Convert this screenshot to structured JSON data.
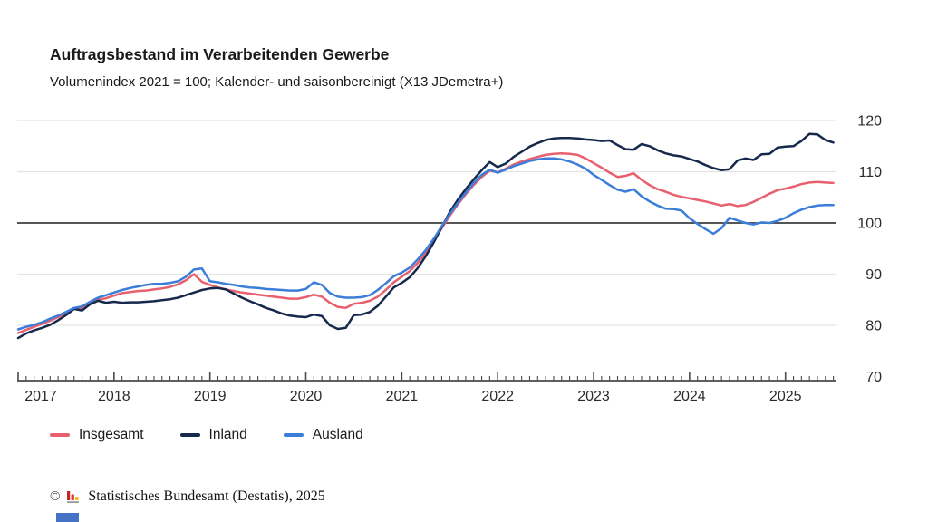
{
  "header": {
    "title": "Auftragsbestand im Verarbeitenden Gewerbe",
    "subtitle": "Volumenindex 2021 = 100; Kalender- und saisonbereinigt (X13 JDemetra+)"
  },
  "chart_data": {
    "type": "line",
    "title": "Auftragsbestand im Verarbeitenden Gewerbe",
    "subtitle": "Volumenindex 2021 = 100; Kalender- und saisonbereinigt (X13 JDemetra+)",
    "frequency": "monthly",
    "x_start": "2017-01",
    "x_end": "2025-07",
    "x_tick_years": [
      2017,
      2018,
      2019,
      2020,
      2021,
      2022,
      2023,
      2024,
      2025
    ],
    "y_ticks": [
      70,
      80,
      90,
      100,
      110,
      120
    ],
    "ylim": [
      70,
      120
    ],
    "reference_line": 100,
    "grid": "horizontal",
    "legend_position": "bottom",
    "colors": {
      "grid": "#e4e4e4",
      "reference": "#3d3d3d",
      "axis": "#4a4a4a",
      "tick_text": "#2b2b2b"
    },
    "series": [
      {
        "name": "Insgesamt",
        "color": "#e8606e",
        "values": [
          78.5,
          79.1,
          79.7,
          80.3,
          80.9,
          81.6,
          82.4,
          83.2,
          83.4,
          84.3,
          85.0,
          85.3,
          85.8,
          86.3,
          86.5,
          86.7,
          86.8,
          87.0,
          87.2,
          87.5,
          88.0,
          88.8,
          90.0,
          88.5,
          87.9,
          87.4,
          87.0,
          86.7,
          86.4,
          86.2,
          86.0,
          85.8,
          85.6,
          85.4,
          85.2,
          85.2,
          85.5,
          86.0,
          85.6,
          84.4,
          83.6,
          83.4,
          84.2,
          84.4,
          84.8,
          85.6,
          86.9,
          88.4,
          89.5,
          90.6,
          92.2,
          94.2,
          96.6,
          99.0,
          101.4,
          103.6,
          105.6,
          107.4,
          109.0,
          110.2,
          109.9,
          110.6,
          111.4,
          112.0,
          112.5,
          112.9,
          113.3,
          113.5,
          113.6,
          113.5,
          113.3,
          112.6,
          111.7,
          110.8,
          109.8,
          109.0,
          109.2,
          109.7,
          108.4,
          107.4,
          106.6,
          106.1,
          105.5,
          105.1,
          104.8,
          104.5,
          104.2,
          103.8,
          103.4,
          103.7,
          103.3,
          103.5,
          104.1,
          104.9,
          105.7,
          106.4,
          106.7,
          107.1,
          107.6,
          107.9,
          108.0,
          107.9,
          107.8
        ]
      },
      {
        "name": "Inland",
        "color": "#16294c",
        "values": [
          77.5,
          78.4,
          79.0,
          79.5,
          80.1,
          81.0,
          82.0,
          83.2,
          82.9,
          84.1,
          84.8,
          84.4,
          84.6,
          84.4,
          84.5,
          84.5,
          84.6,
          84.7,
          84.9,
          85.1,
          85.4,
          85.9,
          86.4,
          86.9,
          87.2,
          87.3,
          87.0,
          86.2,
          85.4,
          84.7,
          84.1,
          83.4,
          82.9,
          82.3,
          81.9,
          81.7,
          81.6,
          82.1,
          81.8,
          80.0,
          79.3,
          79.5,
          82.0,
          82.1,
          82.6,
          83.8,
          85.6,
          87.4,
          88.3,
          89.4,
          91.2,
          93.5,
          96.2,
          99.2,
          102.1,
          104.5,
          106.6,
          108.5,
          110.3,
          111.9,
          110.9,
          111.6,
          112.9,
          113.9,
          114.9,
          115.6,
          116.2,
          116.5,
          116.6,
          116.6,
          116.5,
          116.3,
          116.2,
          116.0,
          116.1,
          115.2,
          114.4,
          114.3,
          115.4,
          115.0,
          114.2,
          113.6,
          113.2,
          113.0,
          112.5,
          112.0,
          111.3,
          110.7,
          110.3,
          110.5,
          112.2,
          112.6,
          112.3,
          113.4,
          113.5,
          114.7,
          114.9,
          115.0,
          116.0,
          117.4,
          117.3,
          116.2,
          115.7
        ]
      },
      {
        "name": "Ausland",
        "color": "#3c7dd9",
        "values": [
          79.2,
          79.7,
          80.1,
          80.6,
          81.3,
          81.9,
          82.6,
          83.4,
          83.7,
          84.6,
          85.4,
          85.9,
          86.4,
          86.9,
          87.3,
          87.6,
          87.9,
          88.1,
          88.1,
          88.3,
          88.6,
          89.5,
          90.9,
          91.1,
          88.6,
          88.4,
          88.1,
          87.9,
          87.6,
          87.4,
          87.3,
          87.1,
          87.0,
          86.9,
          86.8,
          86.8,
          87.1,
          88.4,
          87.9,
          86.3,
          85.6,
          85.4,
          85.4,
          85.5,
          85.9,
          86.9,
          88.2,
          89.6,
          90.3,
          91.3,
          92.9,
          94.7,
          96.9,
          99.4,
          101.7,
          103.9,
          105.9,
          107.8,
          109.4,
          110.4,
          109.8,
          110.4,
          111.1,
          111.6,
          112.1,
          112.4,
          112.6,
          112.6,
          112.4,
          112.0,
          111.4,
          110.6,
          109.4,
          108.4,
          107.4,
          106.5,
          106.1,
          106.6,
          105.2,
          104.2,
          103.4,
          102.8,
          102.7,
          102.4,
          100.9,
          99.8,
          98.8,
          97.9,
          99.0,
          101.0,
          100.5,
          100.0,
          99.7,
          100.1,
          100.0,
          100.4,
          101.0,
          101.9,
          102.6,
          103.1,
          103.4,
          103.5,
          103.5
        ]
      }
    ]
  },
  "footer": {
    "copyright": "©",
    "source": "Statistisches Bundesamt (Destatis), 2025"
  }
}
